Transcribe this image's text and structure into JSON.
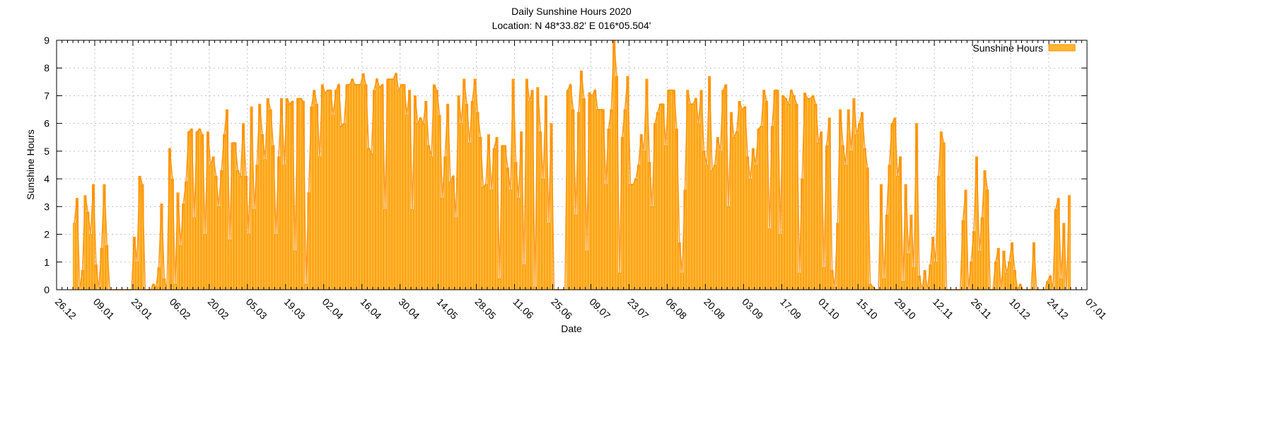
{
  "chart_data": {
    "type": "bar",
    "title": "Daily Sunshine Hours 2020",
    "subtitle": "Location: N 48*33.82'  E 016*05.504'",
    "xlabel": "Date",
    "ylabel": "Sunshine Hours",
    "ylim": [
      0,
      9
    ],
    "yticks": [
      "0",
      "1",
      "2",
      "3",
      "4",
      "5",
      "6",
      "7",
      "8",
      "9"
    ],
    "x_start": "2019-12-26",
    "x_end": "2021-01-07",
    "x_tick_step_days": 14,
    "xticks": [
      "26.12",
      "09.01",
      "23.01",
      "06.02",
      "20.02",
      "05.03",
      "19.03",
      "02.04",
      "16.04",
      "30.04",
      "14.05",
      "28.05",
      "11.06",
      "25.06",
      "09.07",
      "23.07",
      "06.08",
      "20.08",
      "03.09",
      "17.09",
      "01.10",
      "15.10",
      "29.10",
      "12.11",
      "26.11",
      "10.12",
      "24.12",
      "07.01"
    ],
    "grid": true,
    "legend": {
      "position": "top-right",
      "entries": [
        "Sunshine Hours"
      ]
    },
    "colors": {
      "fill": "#ffb732",
      "stroke": "#ff8c00",
      "grid": "#c0c0c0"
    },
    "series": [
      {
        "name": "Sunshine Hours",
        "start_date": "2020-01-01",
        "values": [
          2.4,
          3.3,
          0,
          0.7,
          3.4,
          2.8,
          2.0,
          3.8,
          0.9,
          0,
          1.5,
          3.8,
          1.6,
          0,
          0,
          0,
          0,
          0,
          0,
          0,
          0,
          0,
          1.9,
          1.0,
          4.1,
          3.8,
          0,
          0,
          0,
          0.2,
          0.1,
          0.8,
          3.1,
          0.4,
          0,
          5.1,
          4.0,
          0.2,
          3.5,
          1.6,
          3.1,
          3.9,
          5.7,
          5.8,
          2.6,
          5.7,
          5.8,
          5.6,
          2.0,
          5.7,
          4.5,
          4.8,
          4.1,
          3.0,
          4.3,
          5.6,
          6.5,
          1.8,
          5.3,
          5.3,
          4.3,
          4.1,
          6.0,
          4.1,
          2.0,
          6.6,
          2.9,
          4.5,
          6.7,
          5.6,
          4.7,
          6.9,
          6.5,
          5.2,
          2.0,
          4.8,
          6.9,
          4.5,
          6.9,
          6.7,
          6.8,
          1.4,
          6.9,
          6.9,
          6.8,
          0.2,
          3.5,
          6.6,
          7.2,
          6.7,
          4.8,
          7.4,
          7.1,
          7.2,
          7.2,
          6.3,
          7.2,
          7.4,
          5.9,
          6.0,
          7.4,
          7.4,
          7.6,
          7.4,
          7.4,
          7.4,
          7.8,
          7.4,
          5.1,
          4.9,
          7.2,
          7.6,
          7.3,
          7.4,
          2.9,
          7.6,
          7.6,
          7.6,
          7.8,
          7.2,
          7.4,
          7.4,
          6.3,
          7.2,
          2.9,
          7.0,
          6.0,
          6.2,
          6.0,
          6.8,
          5.2,
          4.8,
          7.4,
          7.2,
          6.3,
          3.3,
          4.8,
          6.7,
          3.9,
          4.1,
          2.6,
          7.0,
          6.0,
          7.6,
          6.7,
          5.3,
          6.8,
          7.6,
          6.4,
          5.5,
          3.7,
          3.8,
          5.6,
          3.6,
          5.1,
          5.5,
          0.4,
          5.2,
          5.2,
          4.4,
          3.6,
          7.6,
          4.6,
          3.3,
          5.7,
          0.9,
          7.6,
          6.8,
          7.2,
          0.1,
          7.3,
          5.7,
          4.0,
          7.0,
          2.4,
          6.0,
          0,
          0,
          0,
          0,
          0,
          7.2,
          7.4,
          6.5,
          2.7,
          6.4,
          7.9,
          6.9,
          1.4,
          7.1,
          7.0,
          7.2,
          6.5,
          6.5,
          6.5,
          3.8,
          5.8,
          6.5,
          9.0,
          7.7,
          0.6,
          5.5,
          6.5,
          7.7,
          3.8,
          3.8,
          4.0,
          4.5,
          5.6,
          5.0,
          7.6,
          4.6,
          3.0,
          6.0,
          6.4,
          6.7,
          6.7,
          5.2,
          7.2,
          7.2,
          7.2,
          5.8,
          1.7,
          0.6,
          3.6,
          7.2,
          6.7,
          6.7,
          6.9,
          6.0,
          7.2,
          5.0,
          4.5,
          7.7,
          4.3,
          4.5,
          5.5,
          5.0,
          7.2,
          7.4,
          3.0,
          6.4,
          5.5,
          5.7,
          6.8,
          6.5,
          6.6,
          4.8,
          4.0,
          5.1,
          4.5,
          5.8,
          5.9,
          7.2,
          6.8,
          2.2,
          5.9,
          7.2,
          7.2,
          2.0,
          7.0,
          6.9,
          6.7,
          7.2,
          7.0,
          6.7,
          0.6,
          4.0,
          7.1,
          6.9,
          6.9,
          7.0,
          6.7,
          5.3,
          5.7,
          0.8,
          5.2,
          6.2,
          0.7,
          0.1,
          2.4,
          6.5,
          5.2,
          4.5,
          6.5,
          5.0,
          6.9,
          5.6,
          6.0,
          6.4,
          5.1,
          4.4,
          0.2,
          0.1,
          0,
          0,
          3.8,
          0.4,
          2.7,
          4.5,
          6.0,
          6.2,
          4.1,
          4.8,
          0.3,
          3.8,
          1.3,
          2.7,
          0.8,
          6.0,
          0.5,
          0,
          0.7,
          0,
          0.9,
          1.9,
          1.0,
          4.1,
          5.7,
          5.3,
          0,
          0,
          0,
          0,
          0,
          0,
          2.5,
          3.6,
          0,
          1.0,
          2.1,
          4.8,
          1.4,
          2.6,
          4.3,
          3.6,
          0,
          0,
          1.0,
          1.5,
          0,
          1.4,
          0.6,
          1.0,
          1.7,
          0.7,
          0,
          0.2,
          0,
          0,
          0,
          0,
          1.7,
          0,
          0,
          0,
          0,
          0.3,
          0.5,
          0,
          2.9,
          3.3,
          0.4,
          2.4,
          0,
          3.4
        ]
      }
    ]
  }
}
